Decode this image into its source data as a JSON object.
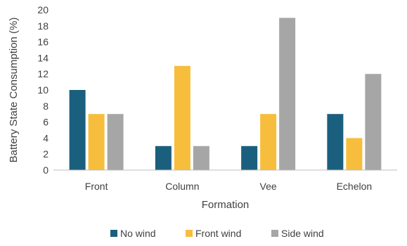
{
  "chart_data": {
    "type": "bar",
    "title": "",
    "xlabel": "Formation",
    "ylabel": "Battery State Consumption (%)",
    "ylim": [
      0,
      20
    ],
    "yticks": [
      0,
      2,
      4,
      6,
      8,
      10,
      12,
      14,
      16,
      18,
      20
    ],
    "grid": false,
    "legend_position": "bottom",
    "categories": [
      "Front",
      "Column",
      "Vee",
      "Echelon"
    ],
    "series": [
      {
        "name": "No wind",
        "color": "#1b5f7e",
        "values": [
          10,
          3,
          3,
          7
        ]
      },
      {
        "name": "Front wind",
        "color": "#f6be3c",
        "values": [
          7,
          13,
          7,
          4
        ]
      },
      {
        "name": "Side wind",
        "color": "#a6a6a6",
        "values": [
          7,
          3,
          19,
          12
        ]
      }
    ]
  }
}
